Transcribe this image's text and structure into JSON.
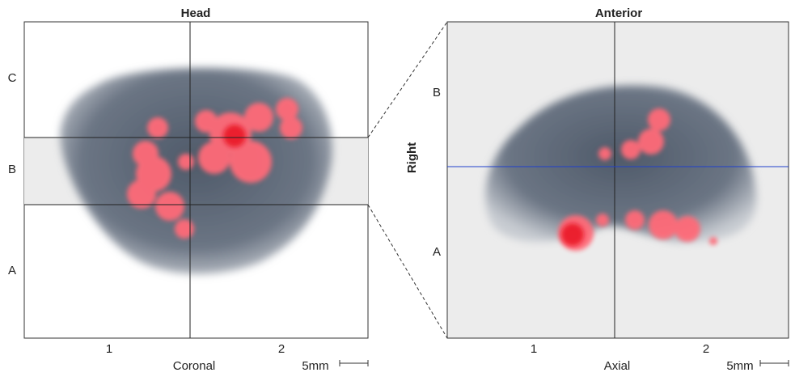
{
  "left_panel": {
    "title": "Head",
    "row_labels": [
      "C",
      "B",
      "A"
    ],
    "column_labels": [
      "1",
      "2"
    ],
    "caption": "Coronal",
    "scale_label": "5mm"
  },
  "right_panel": {
    "title": "Anterior",
    "row_labels": [
      "B",
      "A"
    ],
    "column_labels": [
      "1",
      "2"
    ],
    "side_label": "Right",
    "caption": "Axial",
    "scale_label": "5mm"
  }
}
